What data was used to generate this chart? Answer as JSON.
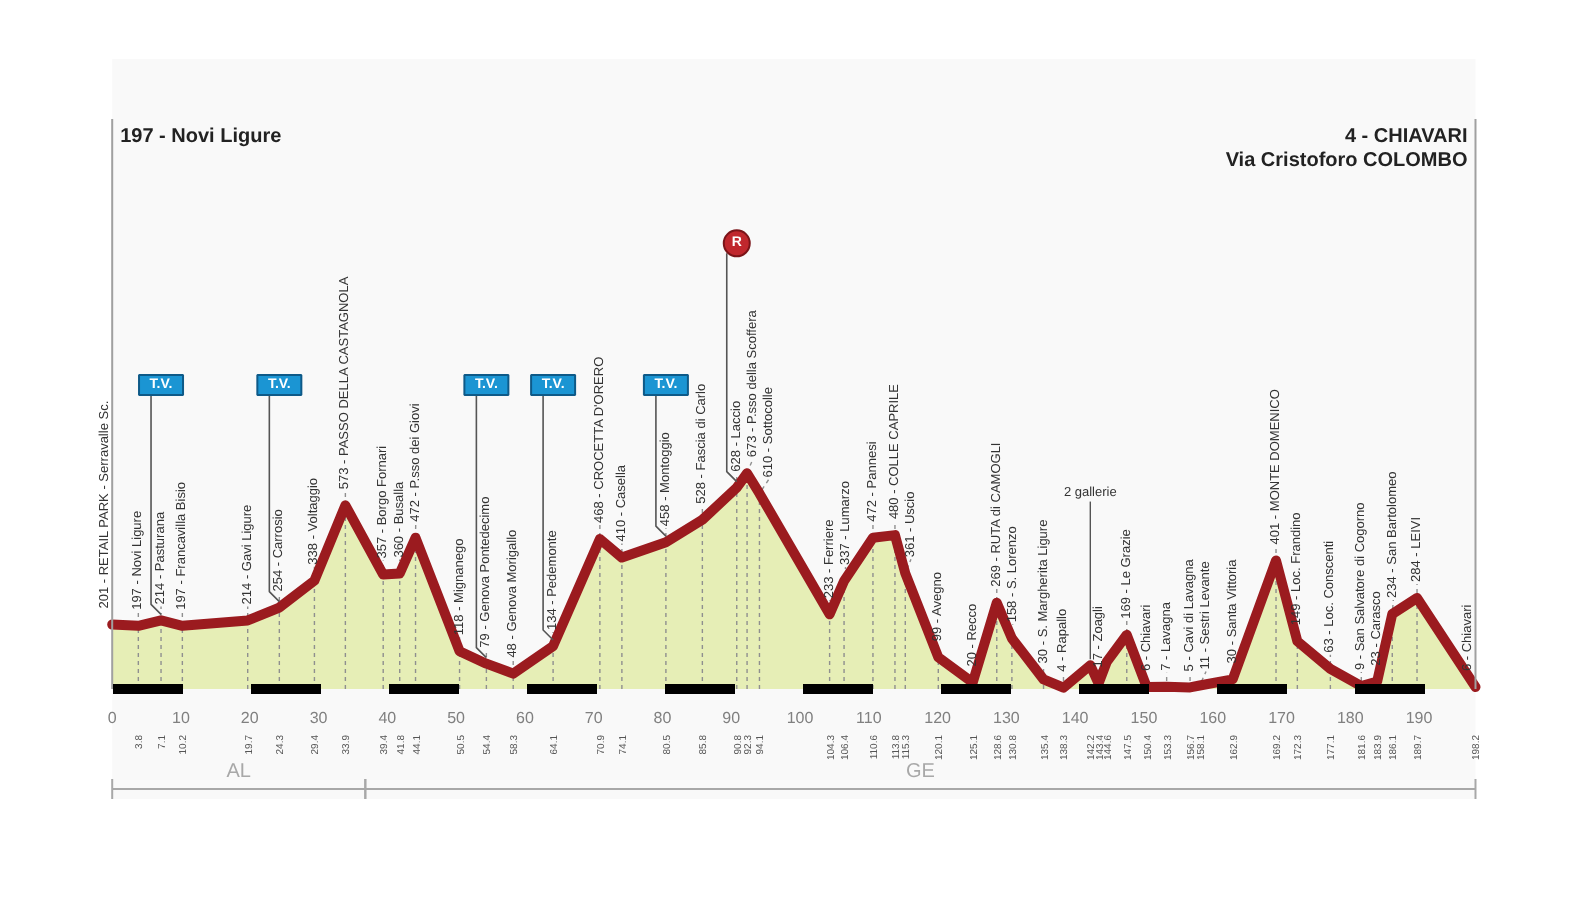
{
  "chart_data": {
    "type": "area",
    "color": "#9b1b1f",
    "tick_labels": "x",
    "x": [
      0,
      3.8,
      7.1,
      10.2,
      19.7,
      24.3,
      29.4,
      33.9,
      39.4,
      41.8,
      44.1,
      50.5,
      54.4,
      58.3,
      64.1,
      70.9,
      74.1,
      80.5,
      85.8,
      90.8,
      92.3,
      94.1,
      104.3,
      106.4,
      110.6,
      113.8,
      115.3,
      120.1,
      125.1,
      128.6,
      130.8,
      135.4,
      138.3,
      142.2,
      143.4,
      144.6,
      147.5,
      150.4,
      153.3,
      156.7,
      158.1,
      162.9,
      169.2,
      172.3,
      177.1,
      181.6,
      183.9,
      186.1,
      189.7,
      198.2
    ],
    "values": [
      201,
      197,
      214,
      197,
      214,
      254,
      338,
      573,
      357,
      360,
      472,
      118,
      79,
      48,
      134,
      468,
      410,
      458,
      528,
      628,
      673,
      610,
      233,
      337,
      472,
      480,
      361,
      99,
      20,
      269,
      158,
      30,
      4,
      74,
      17,
      85,
      169,
      6,
      7,
      5,
      11,
      30,
      401,
      149,
      63,
      9,
      23,
      234,
      284,
      6
    ],
    "value_labels": [
      "201 - RETAIL PARK - Serravalle Sc.",
      "197 - Novi Ligure",
      "214 - Pasturana",
      "197 - Francavilla Bisio",
      "214 - Gavi Ligure",
      "254 - Carrosio",
      "338 - Voltaggio",
      "573 - PASSO DELLA CASTAGNOLA",
      "357 - Borgo Fornari",
      "360 - Busalla",
      "472 - P.sso dei Giovi",
      "118 - Mignanego",
      "79 - Genova Pontedecimo",
      "48 - Genova Morigallo",
      "134 - Pedemonte",
      "468 - CROCETTA D'ORERO",
      "410 - Casella",
      "458 - Montoggio",
      "528 - Fascia di Carlo",
      "628 - Laccio",
      "673 - P.sso della Scoffera",
      "610 - Sottocolle",
      "233 - Ferriere",
      "337 - Lumarzo",
      "472 - Pannesi",
      "480 - COLLE CAPRILE",
      "361 - Uscio",
      "99 - Avegno",
      "20 - Recco",
      "269 - RUTA di CAMOGLI",
      "158 - S. Lorenzo",
      "30 - S. Margherita Ligure",
      "4 - Rapallo",
      null,
      "17 - Zoagli",
      null,
      "169 - Le Grazie",
      "6 - Chiavari",
      "7 - Lavagna",
      "5 - Cavi di Lavagna",
      "11 - Sestri Levante",
      "30 - Santa Vittoria",
      "401 - MONTE DOMENICO",
      "149 - Loc. Frandino",
      "63 - Loc. Conscenti",
      "9 - San Salvatore di Cogorno",
      "23 - Carasco",
      "234 - San Bartolomeo",
      "284 - LEIVI",
      "6 - Chiavari"
    ],
    "xlim": [
      -2.5,
      199
    ],
    "xticks": [
      0,
      10,
      20,
      30,
      40,
      50,
      60,
      70,
      80,
      90,
      100,
      110,
      120,
      130,
      140,
      150,
      160,
      170,
      180,
      190
    ],
    "x2lim": [
      -2.5,
      199
    ],
    "x2ticks": [
      3.8,
      7.1,
      10.2,
      19.7,
      24.3,
      29.4,
      33.9,
      39.4,
      41.8,
      44.1,
      50.5,
      54.4,
      58.3,
      64.1,
      70.9,
      74.1,
      80.5,
      85.8,
      90.8,
      92.3,
      94.1,
      104.3,
      106.4,
      110.6,
      113.8,
      115.3,
      120.1,
      125.1,
      128.6,
      130.8,
      135.4,
      138.3,
      142.2,
      143.4,
      144.6,
      147.5,
      150.4,
      153.3,
      156.7,
      158.1,
      162.9,
      169.2,
      172.3,
      177.1,
      181.6,
      183.9,
      186.1,
      189.7,
      198.2
    ],
    "annotations": [
      {
        "text": "T.V.",
        "x": 7.1,
        "y": 214
      },
      {
        "text": "T.V.",
        "x": 24.3,
        "y": 254
      },
      {
        "text": "T.V.",
        "x": 54.4,
        "y": 79
      },
      {
        "text": "T.V.",
        "x": 64.1,
        "y": 134
      },
      {
        "text": "T.V.",
        "x": 80.5,
        "y": 458
      },
      {
        "text": "R",
        "x": 90.8,
        "y": 628
      },
      {
        "text": "2 gallerie",
        "x": 142.2,
        "y": 74
      }
    ],
    "ref_lines": [
      {
        "axis": "x",
        "value": 0,
        "label": "197 - Novi Ligure",
        "color": "#a0a0a0"
      },
      {
        "axis": "x",
        "value": 198.2,
        "label": "4 - CHIAVARI\nVia Cristoforo COLOMBO",
        "color": "#a0a0a0"
      }
    ],
    "bands": [
      {
        "axis": "x",
        "from": 0,
        "to": 36.8,
        "label": "AL"
      },
      {
        "axis": "x",
        "from": 36.8,
        "to": 198.2,
        "label": "GE"
      }
    ]
  }
}
